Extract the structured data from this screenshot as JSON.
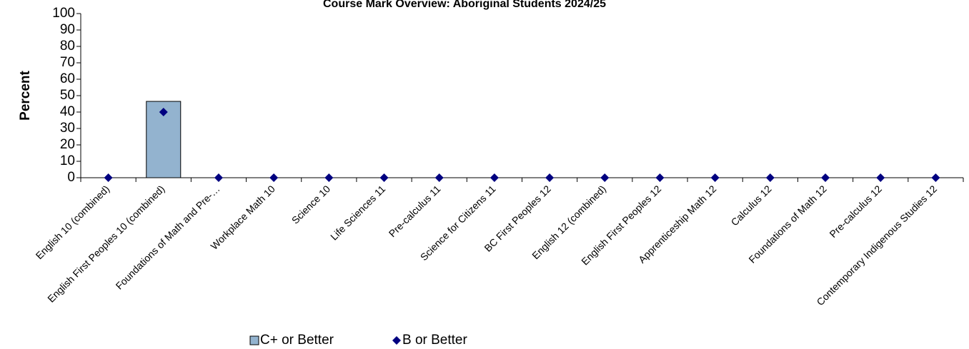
{
  "chart_data": {
    "type": "bar",
    "title": "Course Mark Overview: Aboriginal Students 2024/25",
    "y_label": "Percent",
    "categories": [
      "English 10 (combined)",
      "English First Peoples 10 (combined)",
      "Foundations of Math and Pre-…",
      "Workplace Math 10",
      "Science 10",
      "Life Sciences 11",
      "Pre-calculus 11",
      "Science for Citizens 11",
      "BC First Peoples 12",
      "English 12 (combined)",
      "English First Peoples 12",
      "Apprenticeship Math 12",
      "Calculus 12",
      "Foundations of Math 12",
      "Pre-calculus 12",
      "Contemporary Indigenous Studies 12"
    ],
    "series": [
      {
        "name": "C+ or Better",
        "type": "bar",
        "color": "#93b3cf",
        "values": [
          0,
          46.5,
          0,
          0,
          0,
          0,
          0,
          0,
          0,
          0,
          0,
          0,
          0,
          0,
          0,
          0
        ]
      },
      {
        "name": "B or Better",
        "type": "scatter",
        "color": "#000080",
        "values": [
          0,
          40,
          0,
          0,
          0,
          0,
          0,
          0,
          0,
          0,
          0,
          0,
          0,
          0,
          0,
          0
        ]
      }
    ],
    "ylim": [
      0,
      100
    ],
    "yticks": [
      0,
      10,
      20,
      30,
      40,
      50,
      60,
      70,
      80,
      90,
      100
    ],
    "grid": false,
    "legend": "bottom"
  }
}
